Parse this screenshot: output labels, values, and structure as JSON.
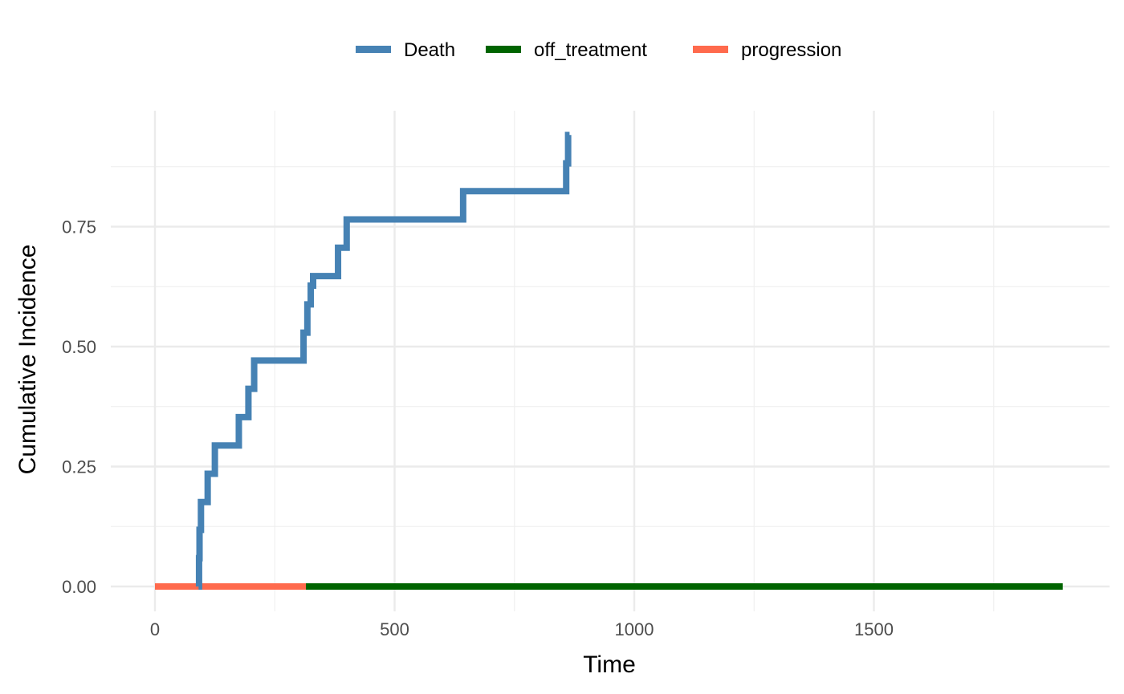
{
  "chart_data": {
    "type": "line",
    "xlabel": "Time",
    "ylabel": "Cumulative Incidence",
    "xlim": [
      0,
      1900
    ],
    "ylim": [
      0,
      0.95
    ],
    "x_ticks": [
      0,
      500,
      1000,
      1500
    ],
    "x_tick_labels": [
      "0",
      "500",
      "1000",
      "1500"
    ],
    "y_ticks": [
      0,
      0.25,
      0.5,
      0.75
    ],
    "y_tick_labels": [
      "0.00",
      "0.25",
      "0.50",
      "0.75"
    ],
    "grid": true,
    "legend_position": "top",
    "step": true,
    "series": [
      {
        "name": "Death",
        "color": "#4682B4",
        "x": [
          91,
          92,
          93,
          96,
          110,
          125,
          175,
          195,
          207,
          310,
          318,
          325,
          330,
          382,
          400,
          643,
          858,
          862,
          865
        ],
        "y": [
          0,
          0.059,
          0.118,
          0.176,
          0.235,
          0.294,
          0.353,
          0.412,
          0.471,
          0.529,
          0.588,
          0.627,
          0.647,
          0.706,
          0.765,
          0.824,
          0.882,
          0.941,
          0.941
        ]
      },
      {
        "name": "off_treatment",
        "color": "#006400",
        "x": [
          0,
          1894
        ],
        "y": [
          0,
          0
        ]
      },
      {
        "name": "progression",
        "color": "#FF6A4D",
        "x": [
          0,
          315
        ],
        "y": [
          0,
          0
        ]
      }
    ]
  }
}
